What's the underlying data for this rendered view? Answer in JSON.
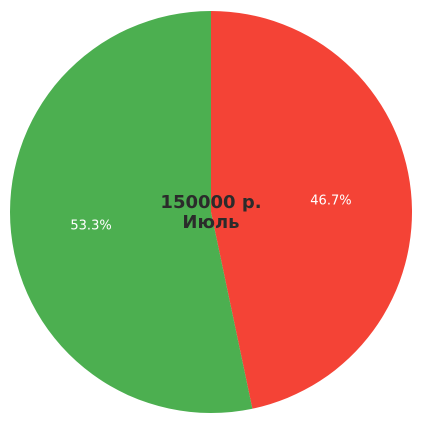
{
  "chart_data": {
    "type": "pie",
    "title": "",
    "slices": [
      {
        "value": 46.7,
        "label": "46.7%",
        "color": "#f44336"
      },
      {
        "value": 53.3,
        "label": "53.3%",
        "color": "#4caf50"
      }
    ],
    "center": {
      "amount": "150000 р.",
      "month": "Июль"
    },
    "start": "12 o'clock",
    "direction": "clockwise"
  }
}
